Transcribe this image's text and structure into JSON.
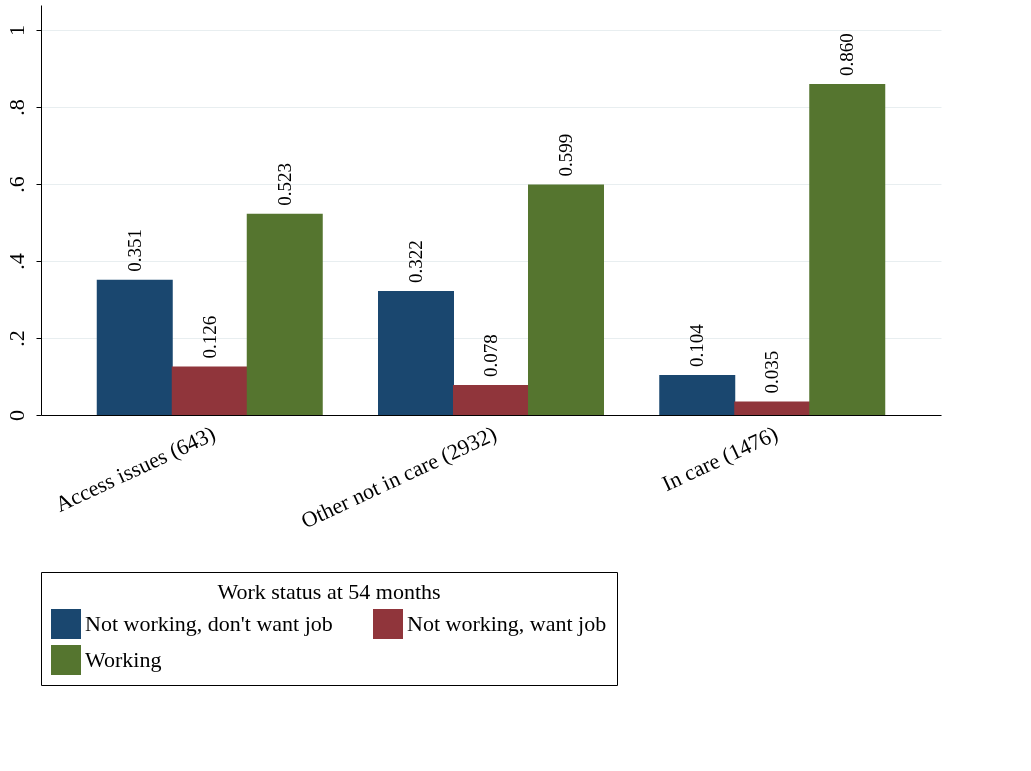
{
  "chart_data": {
    "type": "bar",
    "categories": [
      "Access issues (643)",
      "Other not in care (2932)",
      "In care (1476)"
    ],
    "series": [
      {
        "name": "Not working, don't want job",
        "color": "#1a476f",
        "values": [
          0.351,
          0.322,
          0.104
        ],
        "value_labels": [
          "0.351",
          "0.322",
          "0.104"
        ]
      },
      {
        "name": "Not working, want job",
        "color": "#90353b",
        "values": [
          0.126,
          0.078,
          0.035
        ],
        "value_labels": [
          "0.126",
          "0.078",
          "0.035"
        ]
      },
      {
        "name": "Working",
        "color": "#55752f",
        "values": [
          0.523,
          0.599,
          0.86
        ],
        "value_labels": [
          "0.523",
          "0.599",
          "0.860"
        ]
      }
    ],
    "legend_title": "Work status at 54 months",
    "ylim": [
      0,
      1.065
    ],
    "yticks": [
      0,
      {
        "value": 0.2,
        "label": ".2"
      },
      {
        "value": 0.4,
        "label": ".4"
      },
      {
        "value": 0.6,
        "label": ".6"
      },
      {
        "value": 0.8,
        "label": ".8"
      },
      1
    ],
    "grid": "y",
    "legend": "bottom"
  }
}
